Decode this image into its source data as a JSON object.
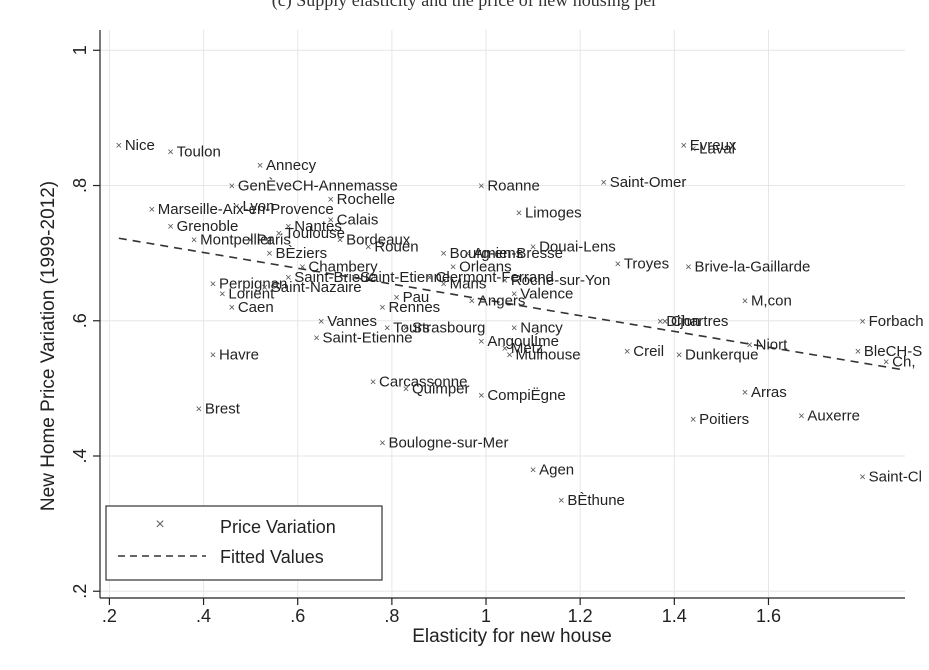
{
  "chart_data": {
    "type": "scatter",
    "title": "(c) Supply elasticity and the price of new housing per",
    "xlabel": "Elasticity for new house",
    "ylabel": "New Home Price Variation (1999-2012)",
    "xlim": [
      0.18,
      1.89
    ],
    "ylim": [
      0.19,
      1.03
    ],
    "x_ticks": [
      0.2,
      0.4,
      0.6,
      0.8,
      1.0,
      1.2,
      1.4,
      1.6
    ],
    "x_tick_labels": [
      ".2",
      ".4",
      ".6",
      ".8",
      "1",
      "1.2",
      "1.4",
      "1.6"
    ],
    "y_ticks": [
      0.2,
      0.4,
      0.6,
      0.8,
      1.0
    ],
    "y_tick_labels": [
      ".2",
      ".4",
      ".6",
      ".8",
      "1"
    ],
    "grid": true,
    "legend_position": "bottom-left",
    "series": [
      {
        "name": "Price Variation",
        "marker": "x",
        "color": "#555555",
        "points": [
          {
            "label": "Nice",
            "x": 0.22,
            "y": 0.86
          },
          {
            "label": "Toulon",
            "x": 0.33,
            "y": 0.85
          },
          {
            "label": "Annecy",
            "x": 0.52,
            "y": 0.83
          },
          {
            "label": "GenÈveCH-Annemasse",
            "x": 0.46,
            "y": 0.8
          },
          {
            "label": "Rochelle",
            "x": 0.67,
            "y": 0.78
          },
          {
            "label": "Marseille-Aix-en-Provence",
            "x": 0.29,
            "y": 0.765
          },
          {
            "label": "Lyon",
            "x": 0.47,
            "y": 0.77
          },
          {
            "label": "Calais",
            "x": 0.67,
            "y": 0.75
          },
          {
            "label": "Grenoble",
            "x": 0.33,
            "y": 0.74
          },
          {
            "label": "Paris",
            "x": 0.5,
            "y": 0.72
          },
          {
            "label": "Nantes",
            "x": 0.58,
            "y": 0.74
          },
          {
            "label": "Toulouse",
            "x": 0.56,
            "y": 0.73
          },
          {
            "label": "Montpellier",
            "x": 0.38,
            "y": 0.72
          },
          {
            "label": "Bordeaux",
            "x": 0.69,
            "y": 0.72
          },
          {
            "label": "Rouen",
            "x": 0.75,
            "y": 0.71
          },
          {
            "label": "BÈziers",
            "x": 0.54,
            "y": 0.7
          },
          {
            "label": "Chambery",
            "x": 0.61,
            "y": 0.68
          },
          {
            "label": "Saint-Brieuc",
            "x": 0.58,
            "y": 0.665
          },
          {
            "label": "Perpignan",
            "x": 0.42,
            "y": 0.655
          },
          {
            "label": "Saint-Nazaire",
            "x": 0.53,
            "y": 0.65
          },
          {
            "label": "Lorient",
            "x": 0.44,
            "y": 0.64
          },
          {
            "label": "Caen",
            "x": 0.46,
            "y": 0.62
          },
          {
            "label": "Saint-Etienne",
            "x": 0.72,
            "y": 0.665
          },
          {
            "label": "Clermont-Ferrand",
            "x": 0.88,
            "y": 0.665
          },
          {
            "label": "Bourg-en-Bresse",
            "x": 0.91,
            "y": 0.7
          },
          {
            "label": "Orleans",
            "x": 0.93,
            "y": 0.68
          },
          {
            "label": "Amiens",
            "x": 0.96,
            "y": 0.7
          },
          {
            "label": "Mans",
            "x": 0.91,
            "y": 0.655
          },
          {
            "label": "Pau",
            "x": 0.81,
            "y": 0.635
          },
          {
            "label": "Angers",
            "x": 0.97,
            "y": 0.63
          },
          {
            "label": "Rennes",
            "x": 0.78,
            "y": 0.62
          },
          {
            "label": "Roanne",
            "x": 0.99,
            "y": 0.8
          },
          {
            "label": "Limoges",
            "x": 1.07,
            "y": 0.76
          },
          {
            "label": "Douai-Lens",
            "x": 1.1,
            "y": 0.71
          },
          {
            "label": "Roche-sur-Yon",
            "x": 1.04,
            "y": 0.66
          },
          {
            "label": "Valence",
            "x": 1.06,
            "y": 0.64
          },
          {
            "label": "Vannes",
            "x": 0.65,
            "y": 0.6
          },
          {
            "label": "Saint-Etienne",
            "x": 0.64,
            "y": 0.575
          },
          {
            "label": "Tours",
            "x": 0.79,
            "y": 0.59
          },
          {
            "label": "Strasbourg",
            "x": 0.83,
            "y": 0.59
          },
          {
            "label": "Nancy",
            "x": 1.06,
            "y": 0.59
          },
          {
            "label": "AngoulÍme",
            "x": 0.99,
            "y": 0.57
          },
          {
            "label": "Metz",
            "x": 1.04,
            "y": 0.56
          },
          {
            "label": "Mulhouse",
            "x": 1.05,
            "y": 0.55
          },
          {
            "label": "Havre",
            "x": 0.42,
            "y": 0.55
          },
          {
            "label": "Carcassonne",
            "x": 0.76,
            "y": 0.51
          },
          {
            "label": "Quimper",
            "x": 0.83,
            "y": 0.5
          },
          {
            "label": "CompiËgne",
            "x": 0.99,
            "y": 0.49
          },
          {
            "label": "Brest",
            "x": 0.39,
            "y": 0.47
          },
          {
            "label": "Boulogne-sur-Mer",
            "x": 0.78,
            "y": 0.42
          },
          {
            "label": "Agen",
            "x": 1.1,
            "y": 0.38
          },
          {
            "label": "BÈthune",
            "x": 1.16,
            "y": 0.335
          },
          {
            "label": "Saint-Omer",
            "x": 1.25,
            "y": 0.805
          },
          {
            "label": "Evreux",
            "x": 1.42,
            "y": 0.86
          },
          {
            "label": "Laval",
            "x": 1.44,
            "y": 0.855
          },
          {
            "label": "Troyes",
            "x": 1.28,
            "y": 0.685
          },
          {
            "label": "Brive-la-Gaillarde",
            "x": 1.43,
            "y": 0.68
          },
          {
            "label": "Dijon",
            "x": 1.37,
            "y": 0.6
          },
          {
            "label": "Chartres",
            "x": 1.38,
            "y": 0.6
          },
          {
            "label": "Creil",
            "x": 1.3,
            "y": 0.555
          },
          {
            "label": "Dunkerque",
            "x": 1.41,
            "y": 0.55
          },
          {
            "label": "Niort",
            "x": 1.56,
            "y": 0.565
          },
          {
            "label": "M,con",
            "x": 1.55,
            "y": 0.63
          },
          {
            "label": "Arras",
            "x": 1.55,
            "y": 0.495
          },
          {
            "label": "Poitiers",
            "x": 1.44,
            "y": 0.455
          },
          {
            "label": "Auxerre",
            "x": 1.67,
            "y": 0.46
          },
          {
            "label": "Forbach",
            "x": 1.8,
            "y": 0.6
          },
          {
            "label": "BleCH-S",
            "x": 1.79,
            "y": 0.555
          },
          {
            "label": "Ch,",
            "x": 1.85,
            "y": 0.54
          },
          {
            "label": "Saint-Cl",
            "x": 1.8,
            "y": 0.37
          }
        ]
      },
      {
        "name": "Fitted Values",
        "style": "dashed",
        "color": "#333333",
        "x": [
          0.22,
          1.89
        ],
        "y": [
          0.722,
          0.527
        ]
      }
    ]
  }
}
